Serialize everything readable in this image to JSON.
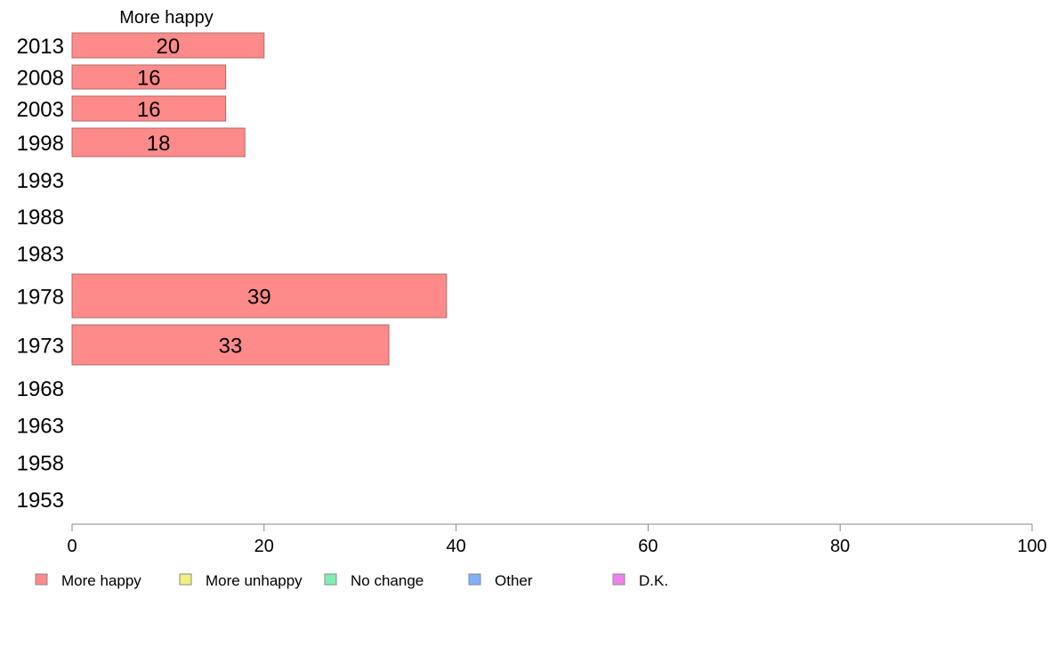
{
  "chart_data": {
    "type": "bar",
    "orientation": "horizontal",
    "column_title": "More happy",
    "categories": [
      "2013",
      "2008",
      "2003",
      "1998",
      "1993",
      "1988",
      "1983",
      "1978",
      "1973",
      "1968",
      "1963",
      "1958",
      "1953"
    ],
    "series": [
      {
        "name": "More happy",
        "color": "#ff8a8a",
        "values": [
          20,
          16,
          16,
          18,
          null,
          null,
          null,
          39,
          33,
          null,
          null,
          null,
          null
        ]
      },
      {
        "name": "More unhappy",
        "color": "#f0f080",
        "values": [
          null,
          null,
          null,
          null,
          null,
          null,
          null,
          null,
          null,
          null,
          null,
          null,
          null
        ]
      },
      {
        "name": "No change",
        "color": "#80f0b0",
        "values": [
          null,
          null,
          null,
          null,
          null,
          null,
          null,
          null,
          null,
          null,
          null,
          null,
          null
        ]
      },
      {
        "name": "Other",
        "color": "#80b0ff",
        "values": [
          null,
          null,
          null,
          null,
          null,
          null,
          null,
          null,
          null,
          null,
          null,
          null,
          null
        ]
      },
      {
        "name": "D.K.",
        "color": "#f080f0",
        "values": [
          null,
          null,
          null,
          null,
          null,
          null,
          null,
          null,
          null,
          null,
          null,
          null,
          null
        ]
      }
    ],
    "data_labels": [
      "20",
      "16",
      "16",
      "18",
      "",
      "",
      "",
      "39",
      "33",
      "",
      "",
      "",
      ""
    ],
    "xlim": [
      0,
      100
    ],
    "xticks": [
      "0",
      "20",
      "40",
      "60",
      "80",
      "100"
    ],
    "legend_position": "bottom",
    "grid": false
  }
}
